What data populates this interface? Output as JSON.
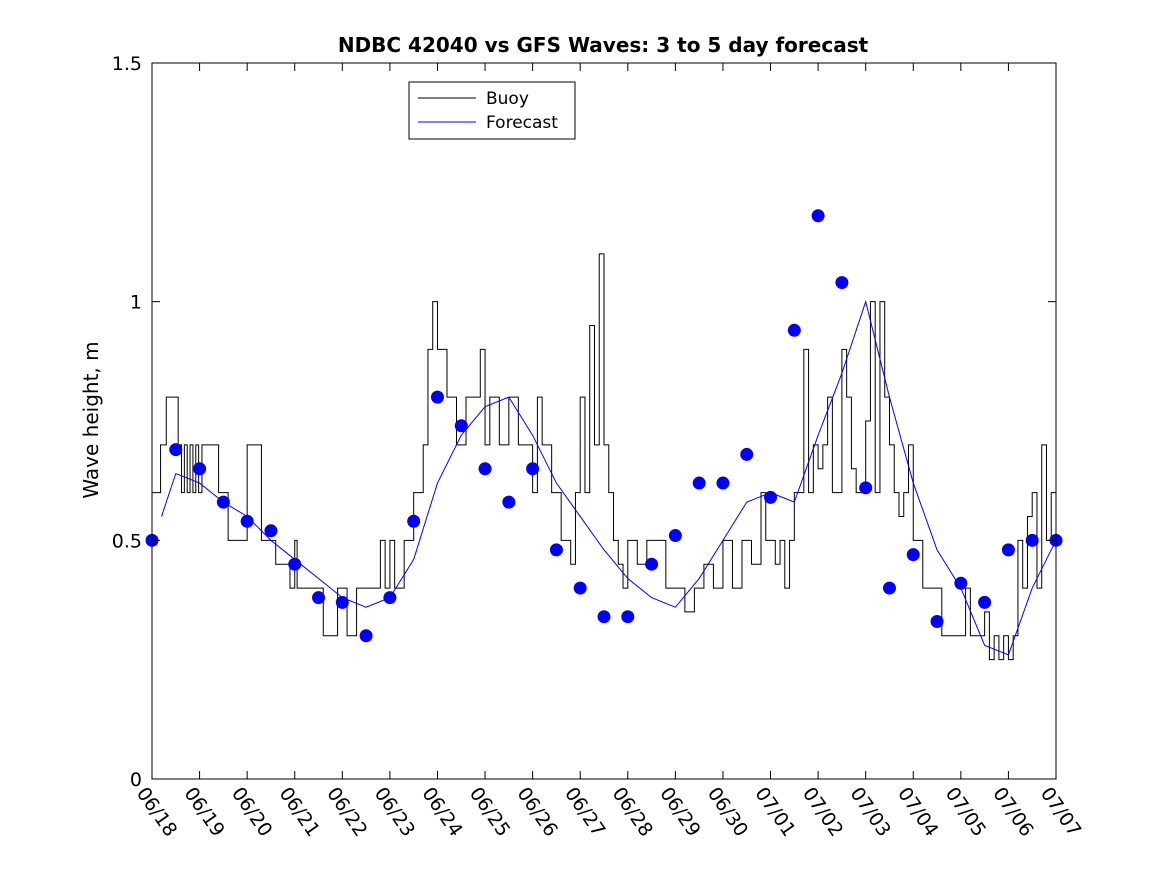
{
  "chart_data": {
    "type": "line",
    "title": "NDBC 42040 vs GFS Waves: 3 to 5 day forecast",
    "xlabel": "",
    "ylabel": "Wave height, m",
    "xlim": [
      0,
      19
    ],
    "ylim": [
      0,
      1.5
    ],
    "x_ticks": [
      "06/18",
      "06/19",
      "06/20",
      "06/21",
      "06/22",
      "06/23",
      "06/24",
      "06/25",
      "06/26",
      "06/27",
      "06/28",
      "06/29",
      "06/30",
      "07/01",
      "07/02",
      "07/03",
      "07/04",
      "07/05",
      "07/06",
      "07/07"
    ],
    "y_ticks": [
      {
        "value": 0,
        "label": "0"
      },
      {
        "value": 0.5,
        "label": "0.5"
      },
      {
        "value": 1,
        "label": "1"
      },
      {
        "value": 1.5,
        "label": "1.5"
      }
    ],
    "grid": false,
    "legend": {
      "position": "top-center",
      "entries": [
        "Buoy",
        "Forecast"
      ]
    },
    "colors": {
      "buoy": "#000000",
      "forecast": "#0000ff",
      "markers": "#0000ff"
    },
    "series": [
      {
        "name": "Buoy",
        "x": [
          0,
          0.1,
          0.18,
          0.3,
          0.45,
          0.55,
          0.62,
          0.68,
          0.74,
          0.8,
          0.86,
          0.92,
          0.98,
          1.05,
          1.12,
          1.2,
          1.4,
          1.6,
          1.75,
          1.9,
          2.0,
          2.3,
          2.6,
          2.9,
          3.0,
          3.05,
          3.1,
          3.2,
          3.3,
          3.4,
          3.5,
          3.6,
          3.75,
          3.9,
          4.1,
          4.3,
          4.5,
          4.7,
          4.8,
          4.9,
          5.0,
          5.1,
          5.3,
          5.5,
          5.7,
          5.8,
          5.9,
          6.0,
          6.2,
          6.4,
          6.6,
          6.8,
          6.9,
          7.0,
          7.1,
          7.2,
          7.3,
          7.5,
          7.7,
          7.9,
          8.0,
          8.1,
          8.2,
          8.3,
          8.4,
          8.5,
          8.6,
          8.7,
          8.8,
          8.9,
          9.0,
          9.1,
          9.2,
          9.3,
          9.4,
          9.5,
          9.6,
          9.7,
          9.8,
          9.9,
          10.0,
          10.2,
          10.4,
          10.6,
          10.8,
          11.0,
          11.2,
          11.4,
          11.6,
          11.8,
          12.0,
          12.2,
          12.4,
          12.6,
          12.8,
          12.9,
          13.0,
          13.1,
          13.2,
          13.3,
          13.4,
          13.5,
          13.6,
          13.7,
          13.8,
          13.9,
          14.0,
          14.1,
          14.2,
          14.3,
          14.4,
          14.5,
          14.6,
          14.7,
          14.8,
          14.9,
          15.0,
          15.1,
          15.2,
          15.3,
          15.4,
          15.5,
          15.6,
          15.7,
          15.8,
          15.9,
          16.0,
          16.2,
          16.4,
          16.6,
          16.8,
          17.0,
          17.1,
          17.2,
          17.3,
          17.4,
          17.5,
          17.6,
          17.7,
          17.8,
          17.9,
          18.0,
          18.1,
          18.2,
          18.3,
          18.4,
          18.5,
          18.6,
          18.7,
          18.8,
          18.9,
          19.0
        ],
        "values": [
          0.6,
          0.6,
          0.7,
          0.8,
          0.8,
          0.7,
          0.6,
          0.7,
          0.6,
          0.7,
          0.6,
          0.7,
          0.6,
          0.7,
          0.7,
          0.7,
          0.6,
          0.5,
          0.5,
          0.5,
          0.7,
          0.5,
          0.45,
          0.4,
          0.5,
          0.4,
          0.4,
          0.4,
          0.4,
          0.4,
          0.4,
          0.3,
          0.3,
          0.4,
          0.3,
          0.4,
          0.4,
          0.4,
          0.5,
          0.4,
          0.5,
          0.4,
          0.5,
          0.6,
          0.7,
          0.9,
          1.0,
          0.9,
          0.8,
          0.7,
          0.8,
          0.8,
          0.9,
          0.7,
          0.8,
          0.8,
          0.7,
          0.8,
          0.7,
          0.7,
          0.6,
          0.8,
          0.7,
          0.7,
          0.6,
          0.6,
          0.5,
          0.5,
          0.45,
          0.6,
          0.8,
          0.6,
          0.95,
          0.7,
          1.1,
          0.7,
          0.6,
          0.5,
          0.45,
          0.4,
          0.5,
          0.45,
          0.5,
          0.5,
          0.4,
          0.4,
          0.35,
          0.4,
          0.45,
          0.4,
          0.5,
          0.4,
          0.5,
          0.45,
          0.6,
          0.5,
          0.5,
          0.45,
          0.5,
          0.4,
          0.5,
          0.6,
          0.6,
          0.9,
          0.6,
          0.7,
          0.65,
          0.7,
          0.8,
          0.6,
          0.6,
          0.9,
          0.8,
          0.65,
          0.6,
          0.6,
          0.75,
          1.0,
          0.6,
          1.0,
          0.8,
          0.7,
          0.6,
          0.55,
          0.6,
          0.7,
          0.5,
          0.4,
          0.4,
          0.3,
          0.3,
          0.3,
          0.4,
          0.3,
          0.3,
          0.3,
          0.35,
          0.25,
          0.3,
          0.25,
          0.3,
          0.25,
          0.3,
          0.5,
          0.4,
          0.55,
          0.6,
          0.4,
          0.7,
          0.5,
          0.6,
          0.5
        ],
        "color": "#000000"
      },
      {
        "name": "Forecast",
        "x": [
          0.2,
          0.5,
          1.0,
          1.5,
          2.0,
          2.5,
          3.0,
          3.5,
          4.0,
          4.5,
          5.0,
          5.5,
          6.0,
          6.5,
          7.0,
          7.5,
          8.0,
          8.5,
          9.0,
          9.5,
          10.0,
          10.5,
          11.0,
          11.5,
          12.0,
          12.5,
          13.0,
          13.5,
          14.0,
          14.5,
          15.0,
          15.5,
          16.0,
          16.5,
          17.0,
          17.5,
          18.0,
          18.5,
          19.0
        ],
        "values": [
          0.55,
          0.64,
          0.62,
          0.58,
          0.55,
          0.5,
          0.46,
          0.42,
          0.38,
          0.36,
          0.38,
          0.46,
          0.62,
          0.72,
          0.78,
          0.8,
          0.72,
          0.62,
          0.55,
          0.48,
          0.42,
          0.38,
          0.36,
          0.42,
          0.5,
          0.58,
          0.6,
          0.58,
          0.72,
          0.85,
          1.0,
          0.8,
          0.62,
          0.48,
          0.4,
          0.28,
          0.26,
          0.4,
          0.5
        ],
        "color": "#0000ff"
      }
    ],
    "markers": {
      "x": [
        0.0,
        0.5,
        1.0,
        1.5,
        2.0,
        2.5,
        3.0,
        3.5,
        4.0,
        4.5,
        5.0,
        5.5,
        6.0,
        6.5,
        7.0,
        7.5,
        8.0,
        8.5,
        9.0,
        9.5,
        10.0,
        10.5,
        11.0,
        11.5,
        12.0,
        12.5,
        13.0,
        13.5,
        14.0,
        14.5,
        15.0,
        15.5,
        16.0,
        16.5,
        17.0,
        17.5,
        18.0,
        18.5,
        19.0
      ],
      "values": [
        0.5,
        0.69,
        0.65,
        0.58,
        0.54,
        0.52,
        0.45,
        0.38,
        0.37,
        0.3,
        0.38,
        0.54,
        0.8,
        0.74,
        0.65,
        0.58,
        0.65,
        0.48,
        0.4,
        0.34,
        0.34,
        0.45,
        0.51,
        0.62,
        0.62,
        0.68,
        0.59,
        0.94,
        1.18,
        1.04,
        0.61,
        0.4,
        0.47,
        0.33,
        0.41,
        0.37,
        0.48,
        0.5,
        0.5
      ]
    }
  }
}
